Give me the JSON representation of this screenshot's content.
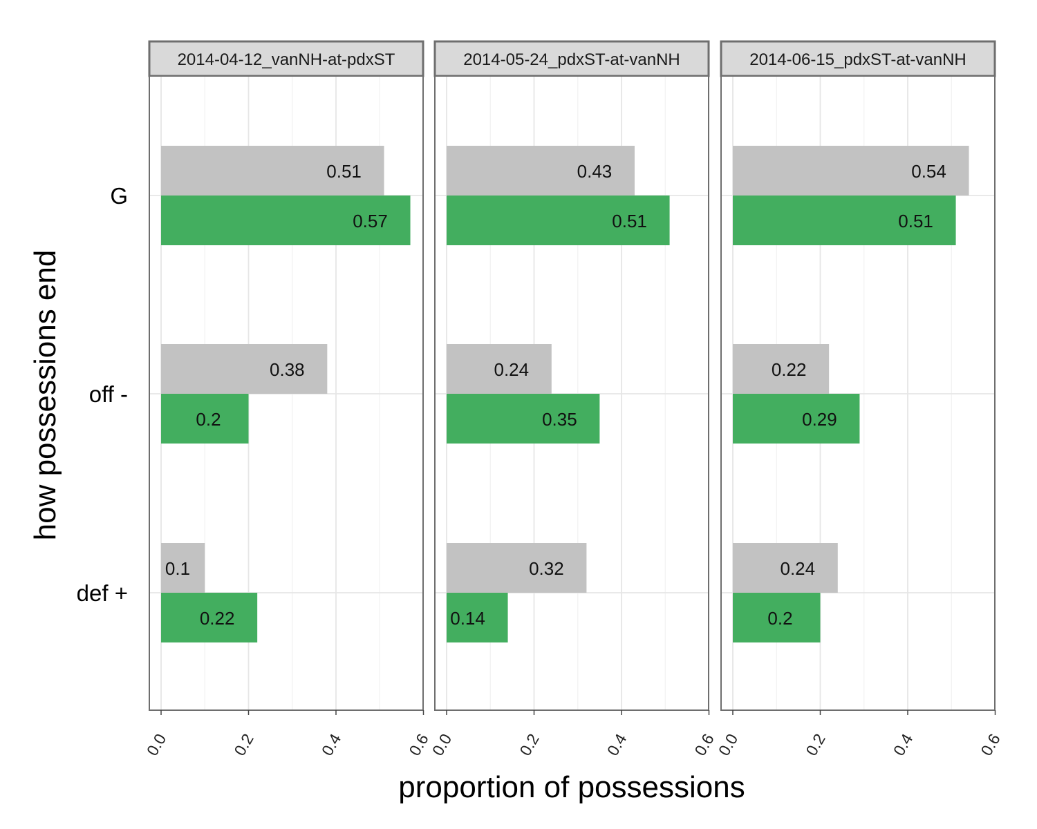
{
  "chart_data": {
    "type": "bar",
    "orientation": "horizontal",
    "xlabel": "proportion of possessions",
    "ylabel": "how possessions end",
    "categories": [
      "G",
      "off -",
      "def +"
    ],
    "xlim": [
      0,
      0.6
    ],
    "xticks": [
      "0.0",
      "0.2",
      "0.4",
      "0.6"
    ],
    "grid": true,
    "legend": "none",
    "colors": {
      "series_1": "#c2c2c2",
      "series_2": "#43ae5f",
      "strip": "#d9d9d9",
      "frame": "#6e6e6e",
      "grid": "#e6e6e6"
    },
    "panels": [
      {
        "title": "2014-04-12_vanNH-at-pdxST",
        "series": [
          {
            "values": [
              0.51,
              0.38,
              0.1
            ],
            "labels": [
              "0.51",
              "0.38",
              "0.1"
            ]
          },
          {
            "values": [
              0.57,
              0.2,
              0.22
            ],
            "labels": [
              "0.57",
              "0.2",
              "0.22"
            ]
          }
        ]
      },
      {
        "title": "2014-05-24_pdxST-at-vanNH",
        "series": [
          {
            "values": [
              0.43,
              0.24,
              0.32
            ],
            "labels": [
              "0.43",
              "0.24",
              "0.32"
            ]
          },
          {
            "values": [
              0.51,
              0.35,
              0.14
            ],
            "labels": [
              "0.51",
              "0.35",
              "0.14"
            ]
          }
        ]
      },
      {
        "title": "2014-06-15_pdxST-at-vanNH",
        "series": [
          {
            "values": [
              0.54,
              0.22,
              0.24
            ],
            "labels": [
              "0.54",
              "0.22",
              "0.24"
            ]
          },
          {
            "values": [
              0.51,
              0.29,
              0.2
            ],
            "labels": [
              "0.51",
              "0.29",
              "0.2"
            ]
          }
        ]
      }
    ]
  }
}
